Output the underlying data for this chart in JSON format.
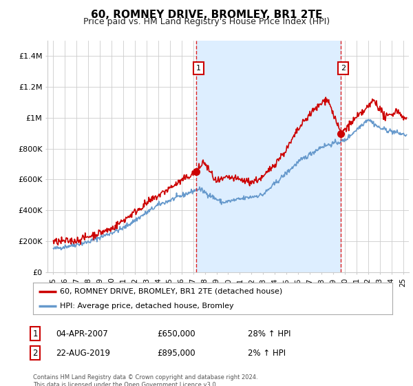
{
  "title": "60, ROMNEY DRIVE, BROMLEY, BR1 2TE",
  "subtitle": "Price paid vs. HM Land Registry's House Price Index (HPI)",
  "title_fontsize": 11,
  "subtitle_fontsize": 9,
  "ylim": [
    0,
    1500000
  ],
  "yticks": [
    0,
    200000,
    400000,
    600000,
    800000,
    1000000,
    1200000,
    1400000
  ],
  "ytick_labels": [
    "£0",
    "£200K",
    "£400K",
    "£600K",
    "£800K",
    "£1M",
    "£1.2M",
    "£1.4M"
  ],
  "background_color": "#ffffff",
  "plot_bg_color": "#ffffff",
  "grid_color": "#cccccc",
  "hpi_line_color": "#6699cc",
  "shade_color": "#ddeeff",
  "price_line_color": "#cc0000",
  "marker1_year": 2007.25,
  "marker1_price": 650000,
  "marker1_label": "1",
  "marker2_year": 2019.65,
  "marker2_price": 895000,
  "marker2_label": "2",
  "annotation1_date": "04-APR-2007",
  "annotation1_price": "£650,000",
  "annotation1_hpi": "28% ↑ HPI",
  "annotation2_date": "22-AUG-2019",
  "annotation2_price": "£895,000",
  "annotation2_hpi": "2% ↑ HPI",
  "legend_line1": "60, ROMNEY DRIVE, BROMLEY, BR1 2TE (detached house)",
  "legend_line2": "HPI: Average price, detached house, Bromley",
  "footer": "Contains HM Land Registry data © Crown copyright and database right 2024.\nThis data is licensed under the Open Government Licence v3.0.",
  "xmin": 1994.5,
  "xmax": 2025.5
}
